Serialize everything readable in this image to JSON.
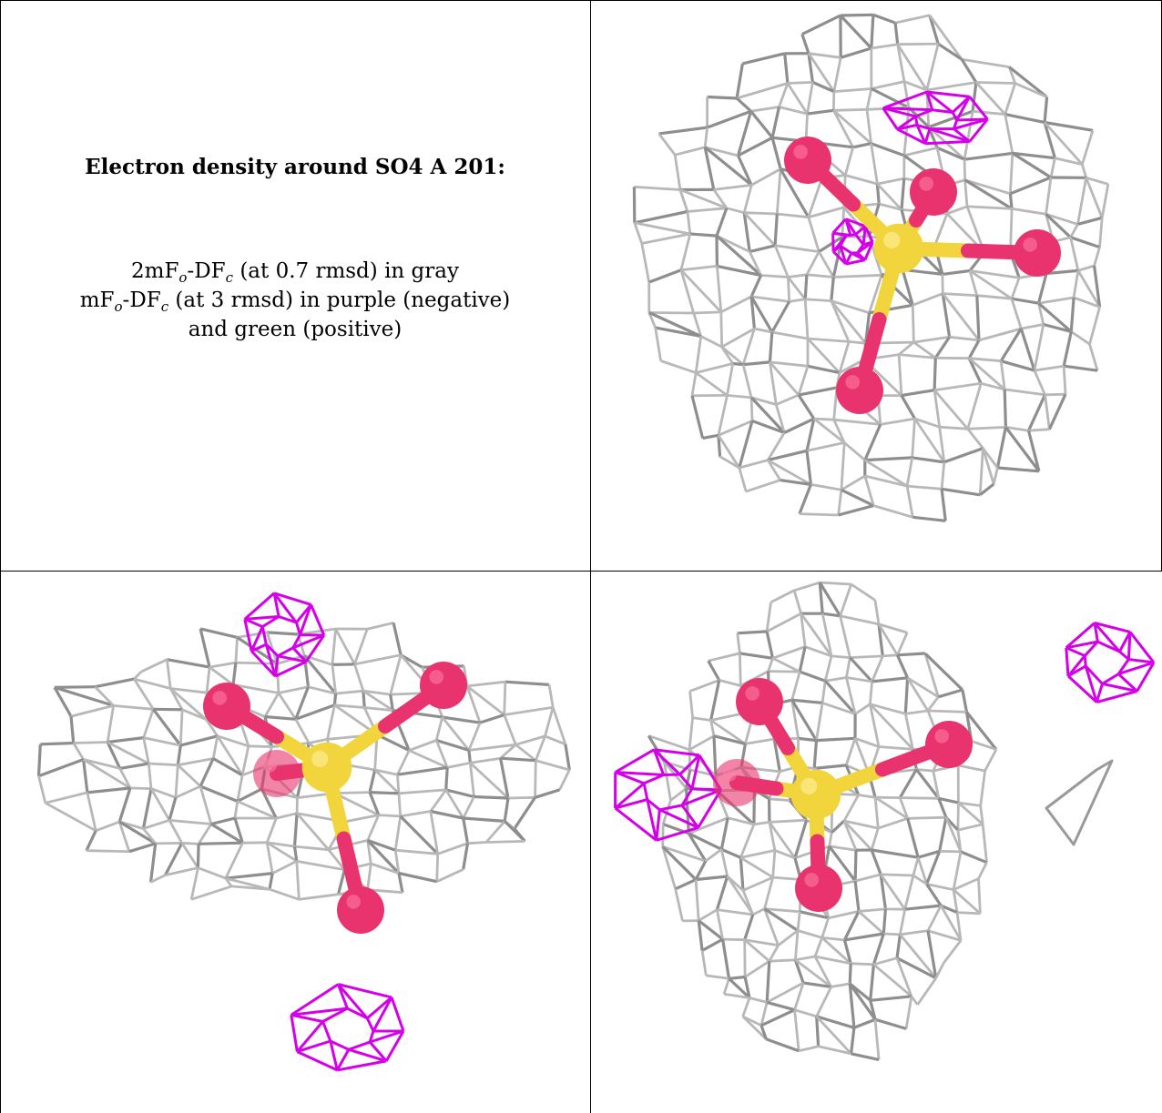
{
  "caption": {
    "title": "Electron density around SO4 A 201:",
    "line1": {
      "before": "2mF",
      "s1": "o",
      "mid": "-DF",
      "s2": "c",
      "after": " (at 0.7 rmsd) in gray"
    },
    "line2": {
      "before": "mF",
      "s1": "o",
      "mid": "-DF",
      "s2": "c",
      "after": " (at 3 rmsd) in purple (negative)"
    },
    "line3": "and green (positive)"
  },
  "colors": {
    "mesh_gray": "#b8b8b8",
    "mesh_purple": "#d400e8",
    "oxygen": "#e8336e",
    "sulfur": "#f2d43c",
    "grid_line": "#000000"
  },
  "panels": [
    {
      "name": "view-top-right"
    },
    {
      "name": "view-bottom-left"
    },
    {
      "name": "view-bottom-right"
    }
  ]
}
